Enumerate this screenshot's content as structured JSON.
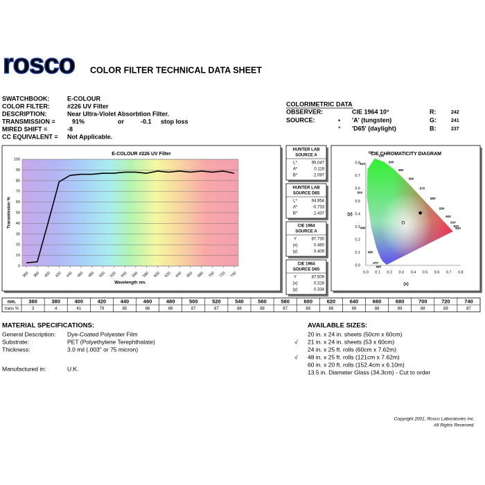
{
  "header": {
    "logo": "rosco",
    "title": "COLOR FILTER TECHNICAL DATA SHEET"
  },
  "info": {
    "rows": [
      [
        "SWATCHBOOK:",
        "E-COLOUR"
      ],
      [
        "COLOR FILTER:",
        "#226 UV Filter"
      ],
      [
        "DESCRIPTION:",
        "Near Ultra-Violet Absorbtion Filter."
      ],
      [
        "TRANSMISSION =",
        "91%",
        "or",
        "-0.1",
        "stop loss"
      ],
      [
        "MIRED SHIFT =",
        "-8"
      ],
      [
        "CC EQUIVALENT =",
        "Not Applicable."
      ]
    ]
  },
  "colorimetric": {
    "title": "COLORIMETRIC DATA",
    "observer": [
      "OBSERVER:",
      "CIE 1964 10°"
    ],
    "source_label": "SOURCE:",
    "sources": [
      {
        "symbol": "•",
        "text": "'A' (tungsten)"
      },
      {
        "symbol": "°",
        "text": "'D65' (daylight)"
      }
    ],
    "rgb": [
      [
        "R:",
        "242"
      ],
      [
        "G:",
        "241"
      ],
      [
        "B:",
        "237"
      ]
    ]
  },
  "chart_data": {
    "type": "line",
    "title": "E-COLOUR #226 UV Filter",
    "x_label": "Wavelength nm.",
    "y_label": "Transmission %",
    "x": [
      360,
      380,
      400,
      420,
      440,
      460,
      480,
      500,
      520,
      540,
      560,
      580,
      600,
      620,
      640,
      660,
      680,
      700,
      720,
      740
    ],
    "series": [
      {
        "color": "#000000",
        "values": [
          3,
          4,
          41,
          79,
          85,
          86,
          86,
          87,
          87,
          88,
          88,
          87,
          89,
          88,
          89,
          88,
          89,
          88,
          89,
          87
        ]
      }
    ],
    "xlim": [
      360,
      740
    ],
    "ylim": [
      0,
      100
    ],
    "xticks": [
      360,
      380,
      400,
      420,
      440,
      460,
      480,
      500,
      520,
      540,
      560,
      580,
      600,
      620,
      640,
      660,
      680,
      700,
      720,
      740
    ],
    "yticks": [
      0,
      10,
      20,
      30,
      40,
      50,
      60,
      70,
      80,
      90,
      100
    ],
    "grid": true
  },
  "data_boxes": [
    {
      "title": [
        "HUNTER LAB",
        "SOURCE A"
      ],
      "rows": [
        [
          "L*",
          "95.047"
        ],
        [
          "A*",
          "0.119"
        ],
        [
          "B*",
          "2.097"
        ]
      ]
    },
    {
      "title": [
        "HUNTER LAB",
        "SOURCE D65"
      ],
      "rows": [
        [
          "L*",
          "94.954"
        ],
        [
          "A*",
          "-0.733"
        ],
        [
          "B*",
          "2.437"
        ]
      ]
    },
    {
      "title": [
        "CIE 1964",
        "SOURCE A"
      ],
      "rows": [
        [
          "Y",
          "87.730"
        ],
        [
          "(x)",
          "0.460"
        ],
        [
          "(y)",
          "0.409"
        ]
      ]
    },
    {
      "title": [
        "CIE 1964",
        "SOURCE D65"
      ],
      "rows": [
        [
          "Y",
          "87.509"
        ],
        [
          "(x)",
          "0.316"
        ],
        [
          "(y)",
          "0.334"
        ]
      ]
    }
  ],
  "cie_diagram": {
    "title": "CIE CHROMATICITY DIAGRAM",
    "x_label": "(x)",
    "y_label": "(y)",
    "xticks": [
      "0.0",
      "0.1",
      "0.2",
      "0.3",
      "0.4",
      "0.5",
      "0.6",
      "0.7",
      "0.8"
    ],
    "yticks": [
      "0.0",
      "0.1",
      "0.2",
      "0.3",
      "0.4",
      "0.5",
      "0.6",
      "0.7",
      "0.8"
    ],
    "locus_labels": [
      "460",
      "470",
      "480",
      "490",
      "500",
      "510",
      "520",
      "530",
      "540",
      "550",
      "560",
      "570",
      "580",
      "590",
      "600",
      "610",
      "620",
      "630"
    ]
  },
  "table": {
    "header_nm": "nm.",
    "header_trans": "trans %"
  },
  "material": {
    "title": "MATERIAL SPECIFICATIONS:",
    "rows": [
      [
        "General Description:",
        "Dye-Coated Polyester Film"
      ],
      [
        "Substrate:",
        "PET (Polyethylene Terephthalate)"
      ],
      [
        "Thickness:",
        "3.0 mil (.003\" or 75 micron)"
      ],
      [
        "Manufactured in:",
        "U.K."
      ]
    ]
  },
  "sizes": {
    "title": "AVAILABLE SIZES:",
    "items": [
      {
        "text": "20 in. x 24 in. sheets (50cm x 60cm)"
      },
      {
        "check": "√",
        "text": "21 in. x 24 in. sheets (53 x 60cm)"
      },
      {
        "text": "24 in. x 25 ft. rolls (60cm x 7.62m)"
      },
      {
        "check": "√",
        "text": "48 in. x 25 ft. rolls (121cm x 7.62m)"
      },
      {
        "text": "60 in. x 20 ft. rolls (152.4cm x 6.10m)"
      },
      {
        "text": "13.5 in. Diameter Glass (34.3cm) - Cut to order"
      }
    ]
  },
  "footer": {
    "copyright": "Copyright 2001, Rosco Laboratories Inc.",
    "rights": "All Rights Reserved."
  }
}
